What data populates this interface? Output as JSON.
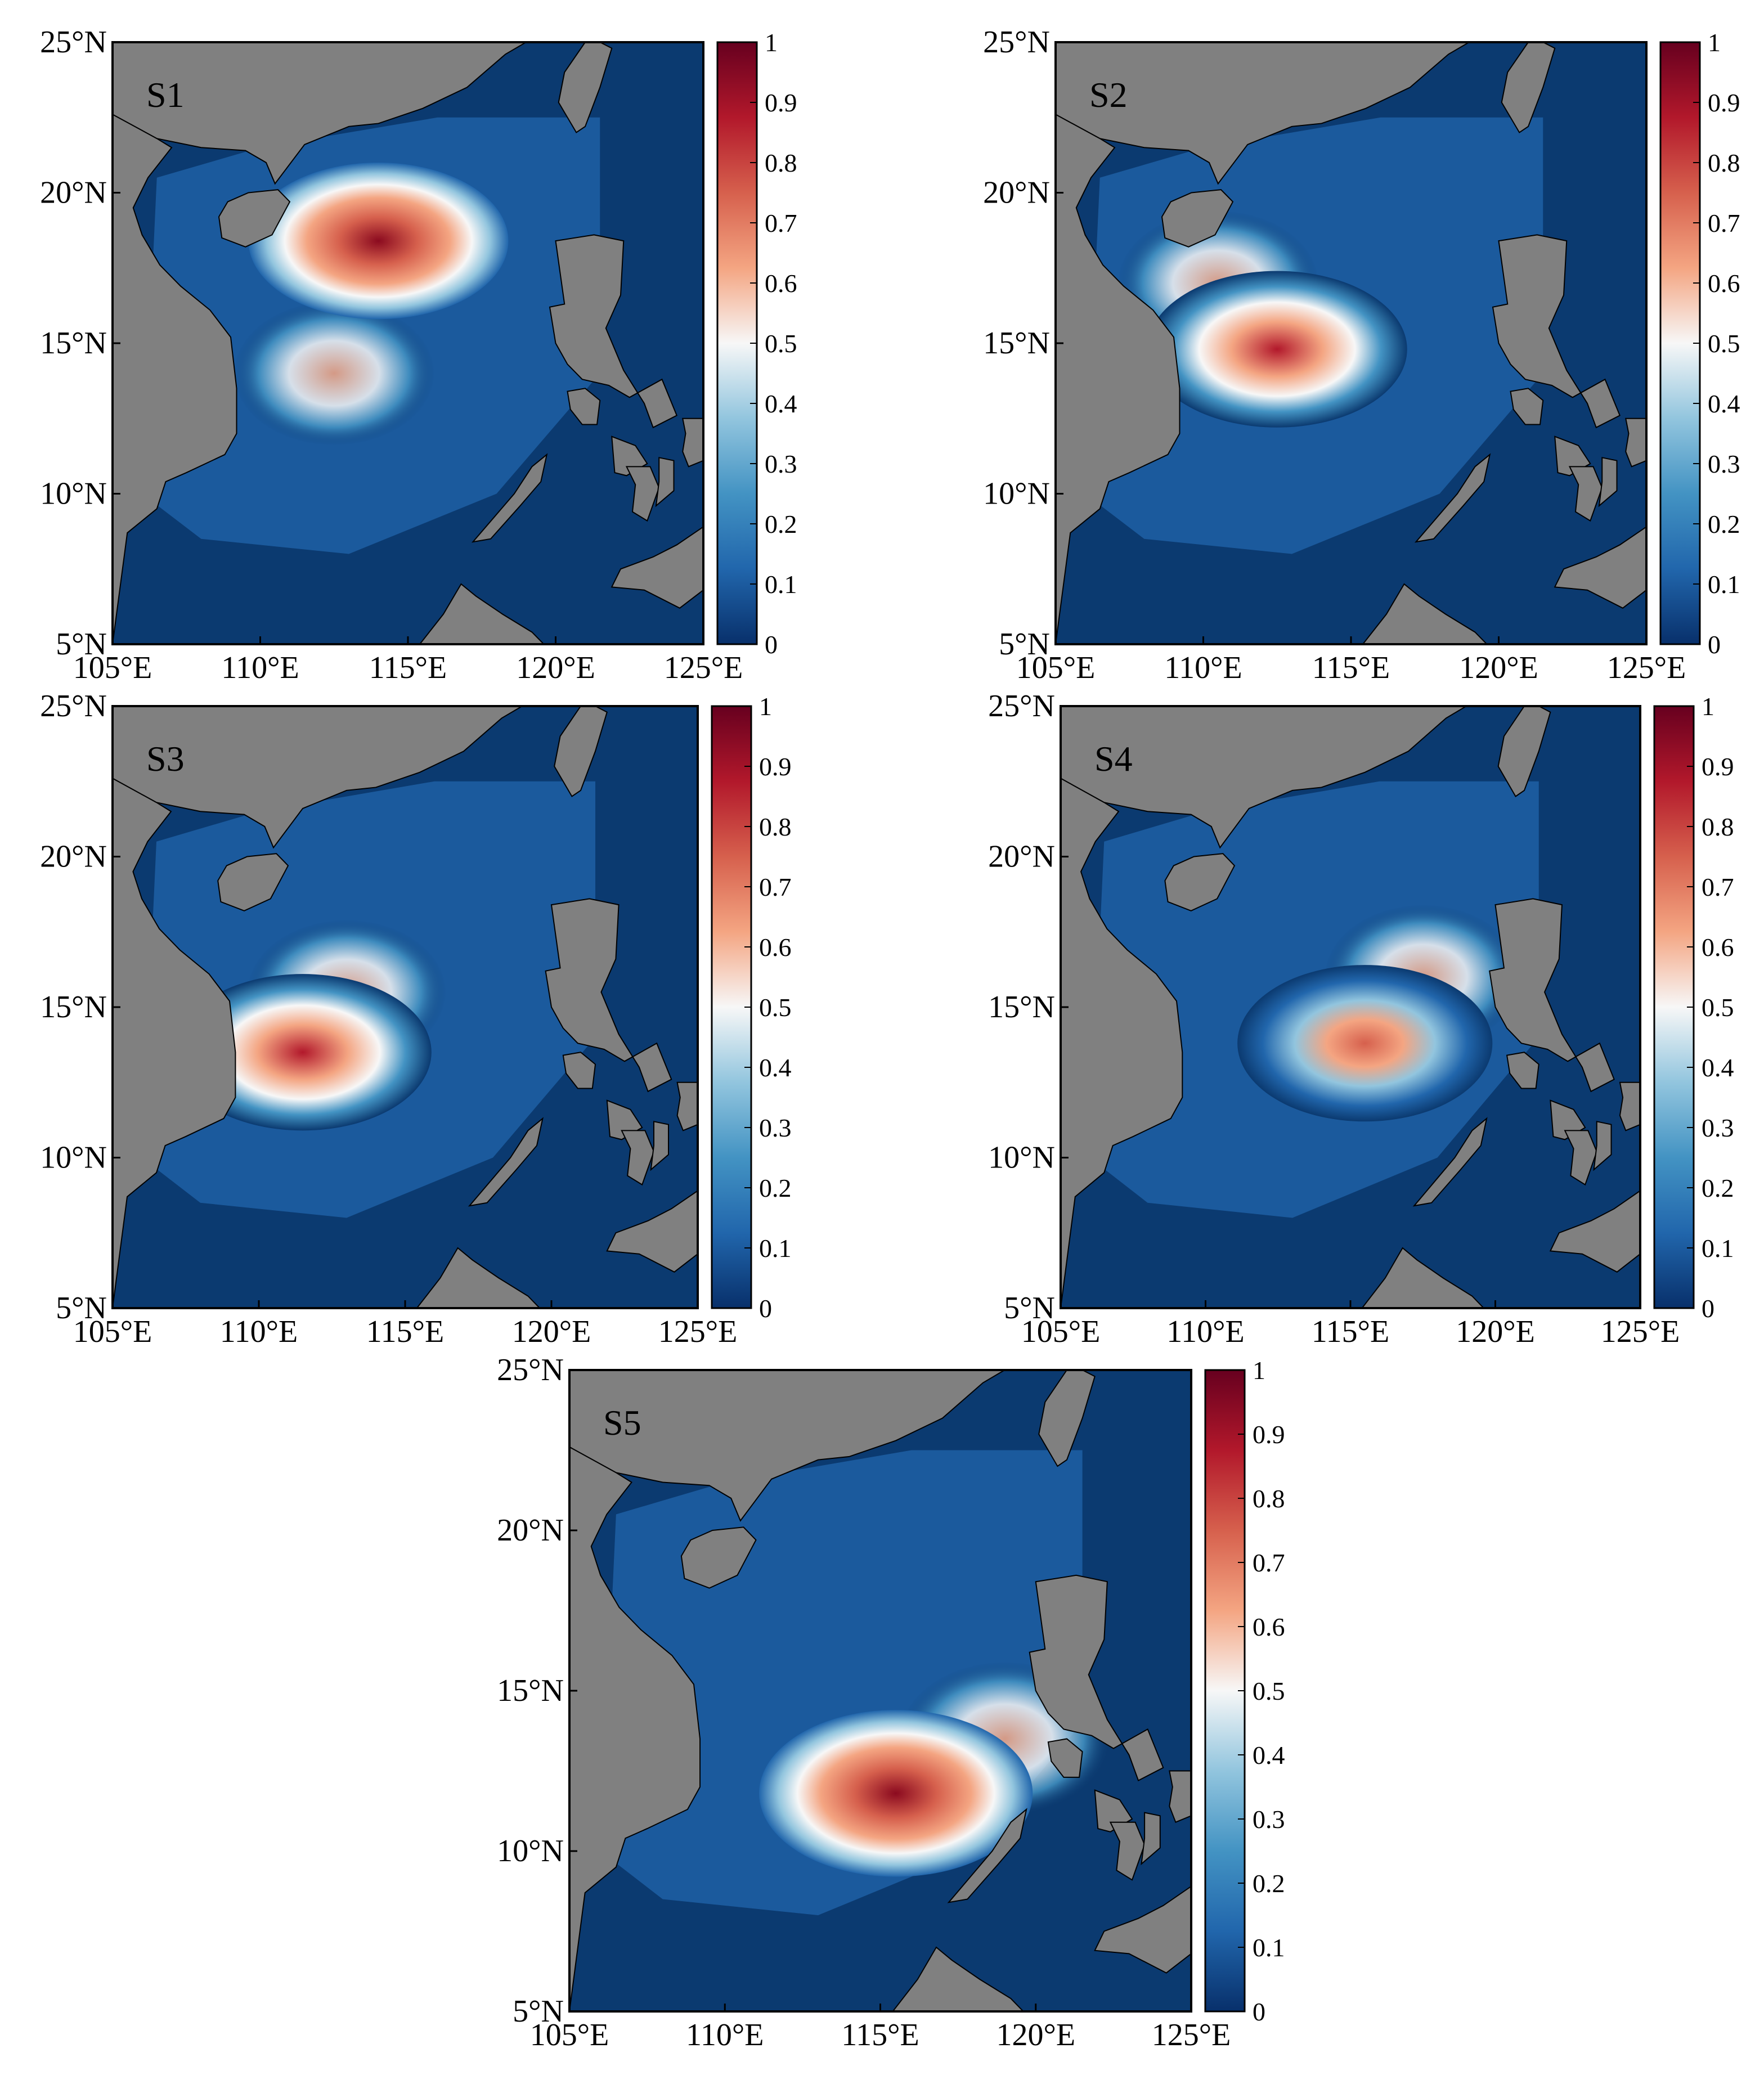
{
  "figure": {
    "panels": [
      {
        "id": "S1",
        "label": "S1",
        "hotspot": {
          "lon": 114.0,
          "lat": 18.4
        },
        "secondary": {
          "lon": 112.5,
          "lat": 14.0
        },
        "level": "high"
      },
      {
        "id": "S2",
        "label": "S2",
        "hotspot": {
          "lon": 112.5,
          "lat": 14.8
        },
        "secondary": {
          "lon": 110.5,
          "lat": 17.0
        },
        "level": "medium"
      },
      {
        "id": "S3",
        "label": "S3",
        "hotspot": {
          "lon": 111.5,
          "lat": 13.5
        },
        "secondary": {
          "lon": 113.0,
          "lat": 15.5
        },
        "level": "medium"
      },
      {
        "id": "S4",
        "label": "S4",
        "hotspot": {
          "lon": 115.5,
          "lat": 13.8
        },
        "secondary": {
          "lon": 117.5,
          "lat": 16.0
        },
        "level": "low"
      },
      {
        "id": "S5",
        "label": "S5",
        "hotspot": {
          "lon": 115.5,
          "lat": 11.8
        },
        "secondary": {
          "lon": 119.0,
          "lat": 13.5
        },
        "level": "high"
      }
    ],
    "lat_ticks": [
      "25°N",
      "20°N",
      "15°N",
      "10°N",
      "5°N"
    ],
    "lon_ticks": [
      "105°E",
      "110°E",
      "115°E",
      "120°E",
      "125°E"
    ],
    "lon_range": [
      105,
      125
    ],
    "lat_range": [
      5,
      25
    ],
    "colorbar": {
      "ticks": [
        "1",
        "0.9",
        "0.8",
        "0.7",
        "0.6",
        "0.5",
        "0.4",
        "0.3",
        "0.2",
        "0.1",
        "0"
      ],
      "range": [
        0,
        1
      ],
      "colors": [
        "#08306b",
        "#2166ac",
        "#4393c3",
        "#92c5de",
        "#f7f7f7",
        "#f4a582",
        "#d6604d",
        "#b2182b",
        "#67001f"
      ]
    },
    "colors": {
      "land": "#808080",
      "ocean_background": "#0b3a70",
      "coastline": "#000000"
    }
  }
}
